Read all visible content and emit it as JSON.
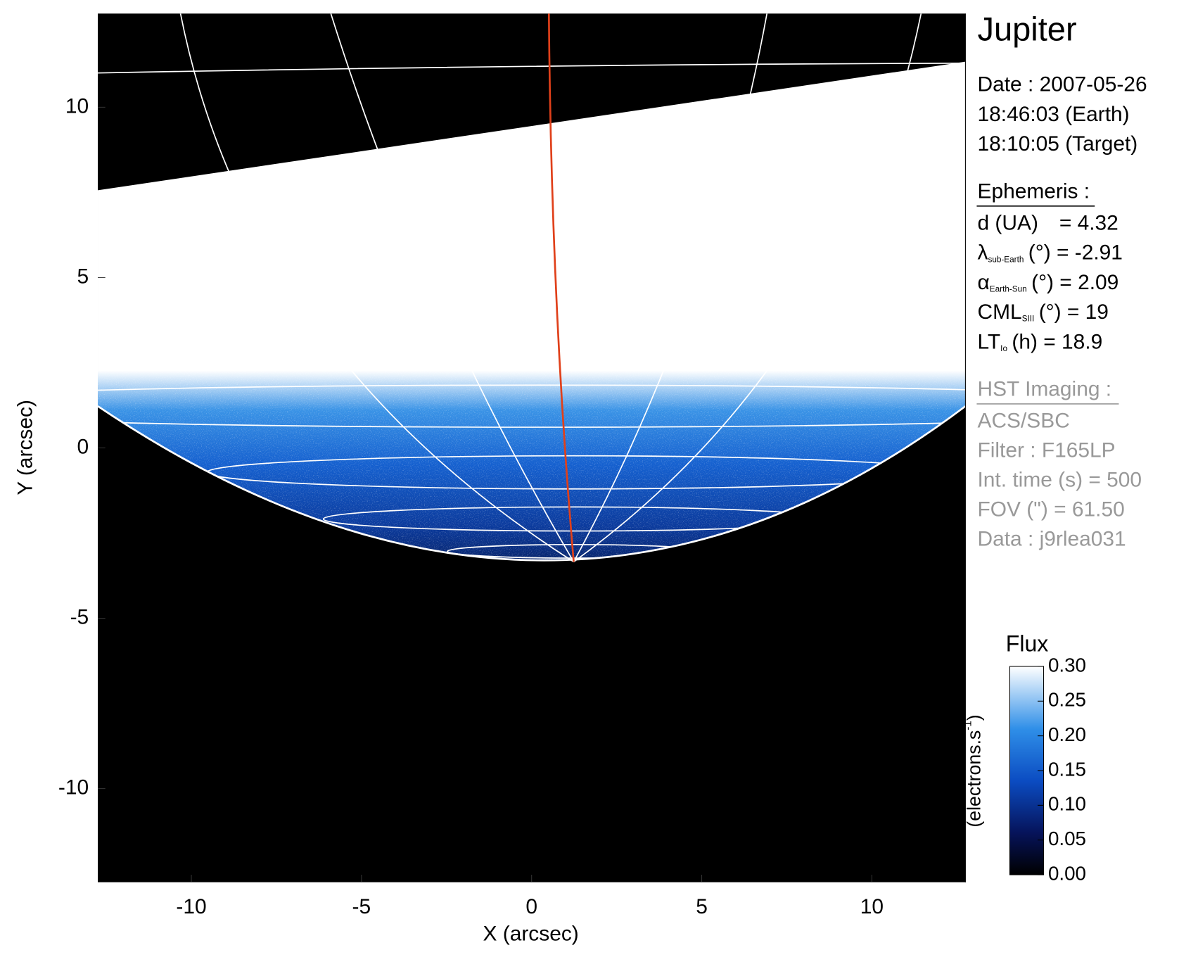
{
  "chart_data": {
    "type": "image",
    "xlabel": "X (arcsec)",
    "ylabel": "Y (arcsec)",
    "xlim": [
      -12.75,
      12.75
    ],
    "ylim": [
      -12.75,
      12.75
    ],
    "xticks": [
      -10,
      -5,
      0,
      5,
      10
    ],
    "yticks": [
      -10,
      -5,
      0,
      5,
      10
    ],
    "colorbar": {
      "title": "Flux",
      "label": {
        "main": "(electrons.s",
        "sup": "-1",
        "end": ")"
      },
      "clim": [
        0,
        0.3
      ],
      "ticks": [
        {
          "value": 0,
          "label": "0.00"
        },
        0.05,
        {
          "value": 0.1,
          "label": "0.10"
        },
        0.15,
        {
          "value": 0.2,
          "label": "0.20"
        },
        0.25,
        {
          "value": 0.3,
          "label": "0.30"
        }
      ]
    },
    "info": {
      "title": "Jupiter",
      "date": [
        "Date : 2007-05-26",
        "18:46:03 (Earth)",
        "18:10:05 (Target)"
      ],
      "ephemeris": {
        "heading": "Ephemeris :",
        "lines": [
          {
            "main": "d (UA)",
            "rest": "= 4.32"
          },
          {
            "main": "λ",
            "sub": "sub-Earth",
            "rest": "(°) = -2.91"
          },
          {
            "main": "α",
            "sub": "Earth-Sun",
            "rest": "(°) = 2.09"
          },
          {
            "main": "CML",
            "sub": "SIII",
            "rest": "(°) = 19"
          },
          {
            "main": "LT",
            "sub": "Io",
            "rest": "(h) = 18.9"
          }
        ]
      },
      "imaging": {
        "heading": "HST Imaging :",
        "lines": [
          "ACS/SBC",
          "Filter : F165LP",
          "Int. time (s) = 500",
          "FOV (\") = 61.50",
          "Data : j9rlea031"
        ]
      }
    }
  }
}
